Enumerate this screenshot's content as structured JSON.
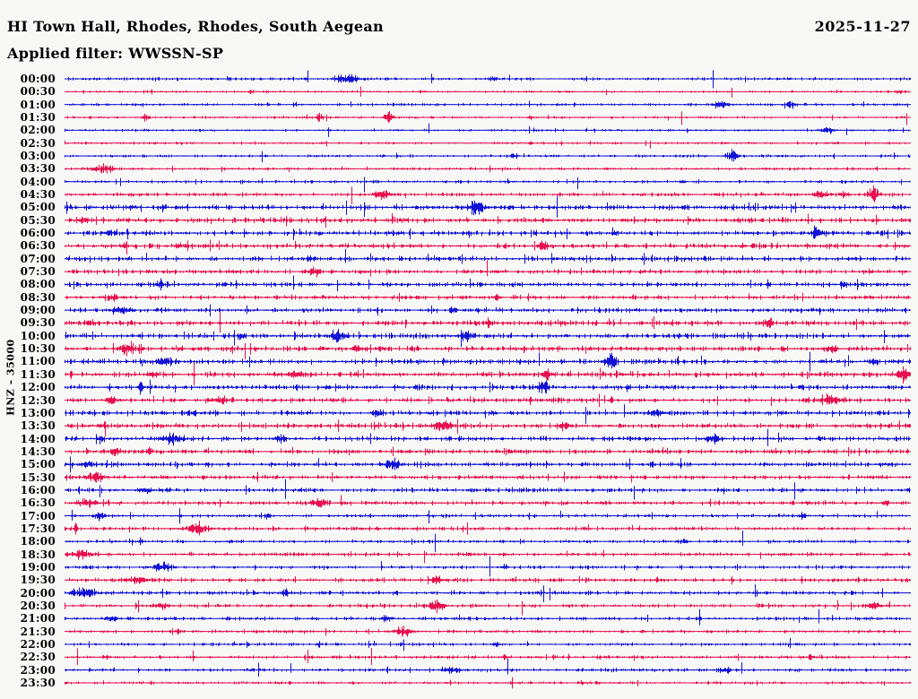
{
  "header": {
    "station_title": "HI Town Hall, Rhodes, Rhodes, South Aegean",
    "date": "2025-11-27",
    "filter_label": "Applied filter: WWSSN-SP"
  },
  "axis": {
    "channel_label": "HNZ – 35000"
  },
  "colors": {
    "blue": "#1212D6",
    "red": "#E8104E",
    "text": "#000000",
    "background": "#F8F8F6"
  },
  "chart_data": {
    "type": "line",
    "subtype": "helicorder",
    "title": "HI Town Hall, Rhodes, Rhodes, South Aegean",
    "date": "2025-11-27",
    "filter": "WWSSN-SP",
    "channel": "HNZ",
    "scale": 35000,
    "row_interval_minutes": 30,
    "num_rows": 48,
    "legend_position": "none",
    "grid": false,
    "bursts_format": "[position_fraction_of_row, gaussian_width_fraction, peak_amplitude_px]",
    "rows": [
      {
        "label": "00:00",
        "color": "blue",
        "noise": 1.1,
        "bursts": [
          [
            0.335,
            0.014,
            4.5
          ],
          [
            0.505,
            0.004,
            2.5
          ]
        ]
      },
      {
        "label": "00:30",
        "color": "red",
        "noise": 0.8,
        "bursts": [
          [
            0.22,
            0.003,
            2.0
          ],
          [
            0.42,
            0.002,
            1.5
          ],
          [
            0.985,
            0.004,
            2.5
          ]
        ]
      },
      {
        "label": "01:00",
        "color": "blue",
        "noise": 1.0,
        "bursts": [
          [
            0.775,
            0.009,
            3.0
          ],
          [
            0.857,
            0.005,
            4.5
          ]
        ]
      },
      {
        "label": "01:30",
        "color": "red",
        "noise": 0.9,
        "bursts": [
          [
            0.095,
            0.004,
            4.0
          ],
          [
            0.3,
            0.004,
            4.0
          ],
          [
            0.383,
            0.005,
            6.5
          ],
          [
            0.55,
            0.003,
            2.0
          ]
        ]
      },
      {
        "label": "02:00",
        "color": "blue",
        "noise": 0.85,
        "bursts": [
          [
            0.9,
            0.007,
            3.5
          ]
        ]
      },
      {
        "label": "02:30",
        "color": "red",
        "noise": 0.85,
        "bursts": [
          [
            0.55,
            0.002,
            1.5
          ]
        ]
      },
      {
        "label": "03:00",
        "color": "blue",
        "noise": 1.0,
        "bursts": [
          [
            0.53,
            0.005,
            2.5
          ],
          [
            0.788,
            0.008,
            4.5
          ]
        ]
      },
      {
        "label": "03:30",
        "color": "red",
        "noise": 1.0,
        "bursts": [
          [
            0.045,
            0.012,
            4.5
          ]
        ]
      },
      {
        "label": "04:00",
        "color": "blue",
        "noise": 1.05,
        "bursts": [
          [
            0.73,
            0.003,
            1.5
          ]
        ]
      },
      {
        "label": "04:30",
        "color": "red",
        "noise": 1.35,
        "bursts": [
          [
            0.375,
            0.009,
            4.5
          ],
          [
            0.893,
            0.006,
            5.0
          ],
          [
            0.92,
            0.004,
            3.0
          ],
          [
            0.955,
            0.006,
            7.0
          ]
        ]
      },
      {
        "label": "05:00",
        "color": "blue",
        "noise": 1.9,
        "bursts": [
          [
            0.08,
            0.005,
            2.5
          ],
          [
            0.487,
            0.009,
            6.5
          ]
        ]
      },
      {
        "label": "05:30",
        "color": "red",
        "noise": 1.8,
        "bursts": [
          [
            0.02,
            0.006,
            3.0
          ]
        ]
      },
      {
        "label": "06:00",
        "color": "blue",
        "noise": 1.8,
        "bursts": [
          [
            0.05,
            0.006,
            2.5
          ],
          [
            0.89,
            0.008,
            4.5
          ]
        ]
      },
      {
        "label": "06:30",
        "color": "red",
        "noise": 1.8,
        "bursts": [
          [
            0.07,
            0.005,
            3.0
          ],
          [
            0.135,
            0.005,
            3.0
          ],
          [
            0.565,
            0.006,
            5.5
          ]
        ]
      },
      {
        "label": "07:00",
        "color": "blue",
        "noise": 1.7,
        "bursts": [
          [
            0.29,
            0.004,
            2.5
          ],
          [
            0.6,
            0.003,
            2.0
          ]
        ]
      },
      {
        "label": "07:30",
        "color": "red",
        "noise": 1.6,
        "bursts": [
          [
            0.295,
            0.007,
            4.0
          ],
          [
            0.51,
            0.003,
            2.5
          ]
        ]
      },
      {
        "label": "08:00",
        "color": "blue",
        "noise": 1.6,
        "bursts": [
          [
            0.115,
            0.009,
            2.5
          ],
          [
            0.92,
            0.004,
            2.0
          ]
        ]
      },
      {
        "label": "08:30",
        "color": "red",
        "noise": 1.5,
        "bursts": [
          [
            0.055,
            0.009,
            3.0
          ],
          [
            0.51,
            0.004,
            3.5
          ]
        ]
      },
      {
        "label": "09:00",
        "color": "blue",
        "noise": 1.8,
        "bursts": [
          [
            0.065,
            0.01,
            3.0
          ],
          [
            0.46,
            0.004,
            2.0
          ]
        ]
      },
      {
        "label": "09:30",
        "color": "red",
        "noise": 1.8,
        "bursts": [
          [
            0.03,
            0.006,
            3.0
          ],
          [
            0.5,
            0.003,
            4.5
          ],
          [
            0.832,
            0.007,
            4.5
          ]
        ]
      },
      {
        "label": "10:00",
        "color": "blue",
        "noise": 1.9,
        "bursts": [
          [
            0.208,
            0.003,
            3.5
          ],
          [
            0.323,
            0.008,
            5.5
          ],
          [
            0.475,
            0.009,
            5.0
          ]
        ]
      },
      {
        "label": "10:30",
        "color": "red",
        "noise": 1.9,
        "bursts": [
          [
            0.075,
            0.009,
            4.5
          ],
          [
            0.345,
            0.005,
            3.5
          ],
          [
            0.905,
            0.007,
            4.5
          ]
        ]
      },
      {
        "label": "11:00",
        "color": "blue",
        "noise": 1.9,
        "bursts": [
          [
            0.12,
            0.009,
            4.5
          ],
          [
            0.645,
            0.007,
            7.0
          ],
          [
            0.955,
            0.005,
            3.5
          ]
        ]
      },
      {
        "label": "11:30",
        "color": "red",
        "noise": 1.9,
        "bursts": [
          [
            0.105,
            0.005,
            3.5
          ],
          [
            0.27,
            0.009,
            3.0
          ],
          [
            0.57,
            0.005,
            5.0
          ],
          [
            0.99,
            0.006,
            7.0
          ]
        ]
      },
      {
        "label": "12:00",
        "color": "blue",
        "noise": 1.8,
        "bursts": [
          [
            0.09,
            0.003,
            6.0
          ],
          [
            0.31,
            0.004,
            2.5
          ],
          [
            0.565,
            0.006,
            6.5
          ]
        ]
      },
      {
        "label": "12:30",
        "color": "red",
        "noise": 1.8,
        "bursts": [
          [
            0.055,
            0.007,
            3.0
          ],
          [
            0.185,
            0.009,
            3.5
          ],
          [
            0.645,
            0.004,
            2.5
          ],
          [
            0.905,
            0.008,
            5.5
          ]
        ]
      },
      {
        "label": "13:00",
        "color": "blue",
        "noise": 1.8,
        "bursts": [
          [
            0.15,
            0.005,
            3.0
          ],
          [
            0.37,
            0.006,
            4.0
          ],
          [
            0.7,
            0.009,
            3.0
          ]
        ]
      },
      {
        "label": "13:30",
        "color": "red",
        "noise": 1.8,
        "bursts": [
          [
            0.045,
            0.005,
            3.0
          ],
          [
            0.447,
            0.009,
            6.5
          ],
          [
            0.59,
            0.006,
            4.0
          ]
        ]
      },
      {
        "label": "14:00",
        "color": "blue",
        "noise": 1.8,
        "bursts": [
          [
            0.042,
            0.003,
            4.5
          ],
          [
            0.127,
            0.013,
            5.5
          ],
          [
            0.255,
            0.007,
            3.0
          ],
          [
            0.765,
            0.007,
            4.0
          ]
        ]
      },
      {
        "label": "14:30",
        "color": "red",
        "noise": 1.6,
        "bursts": [
          [
            0.06,
            0.006,
            3.0
          ],
          [
            0.1,
            0.004,
            3.0
          ]
        ]
      },
      {
        "label": "15:00",
        "color": "blue",
        "noise": 1.7,
        "bursts": [
          [
            0.025,
            0.008,
            3.5
          ],
          [
            0.388,
            0.007,
            7.5
          ]
        ]
      },
      {
        "label": "15:30",
        "color": "red",
        "noise": 1.5,
        "bursts": [
          [
            0.035,
            0.009,
            4.0
          ]
        ]
      },
      {
        "label": "16:00",
        "color": "blue",
        "noise": 1.5,
        "bursts": [
          [
            0.095,
            0.007,
            3.0
          ],
          [
            0.5,
            0.003,
            2.0
          ]
        ]
      },
      {
        "label": "16:30",
        "color": "red",
        "noise": 1.4,
        "bursts": [
          [
            0.025,
            0.013,
            4.0
          ],
          [
            0.3,
            0.011,
            3.0
          ],
          [
            0.97,
            0.004,
            2.5
          ]
        ]
      },
      {
        "label": "17:00",
        "color": "blue",
        "noise": 1.25,
        "bursts": [
          [
            0.04,
            0.007,
            3.0
          ],
          [
            0.24,
            0.003,
            2.5
          ],
          [
            0.87,
            0.004,
            2.0
          ]
        ]
      },
      {
        "label": "17:30",
        "color": "red",
        "noise": 1.3,
        "bursts": [
          [
            0.013,
            0.002,
            5.5
          ],
          [
            0.155,
            0.013,
            4.5
          ]
        ]
      },
      {
        "label": "18:00",
        "color": "blue",
        "noise": 1.15,
        "bursts": [
          [
            0.09,
            0.003,
            2.5
          ],
          [
            0.73,
            0.007,
            2.0
          ]
        ]
      },
      {
        "label": "18:30",
        "color": "red",
        "noise": 1.3,
        "bursts": [
          [
            0.02,
            0.013,
            3.5
          ],
          [
            0.48,
            0.003,
            2.0
          ]
        ]
      },
      {
        "label": "19:00",
        "color": "blue",
        "noise": 1.2,
        "bursts": [
          [
            0.115,
            0.01,
            4.5
          ],
          [
            0.52,
            0.004,
            2.0
          ]
        ]
      },
      {
        "label": "19:30",
        "color": "red",
        "noise": 1.4,
        "bursts": [
          [
            0.085,
            0.013,
            3.5
          ],
          [
            0.44,
            0.007,
            2.5
          ],
          [
            0.7,
            0.003,
            2.0
          ]
        ]
      },
      {
        "label": "20:00",
        "color": "blue",
        "noise": 1.4,
        "bursts": [
          [
            0.022,
            0.013,
            5.5
          ],
          [
            0.26,
            0.004,
            3.0
          ]
        ]
      },
      {
        "label": "20:30",
        "color": "red",
        "noise": 1.3,
        "bursts": [
          [
            0.115,
            0.009,
            3.0
          ],
          [
            0.44,
            0.009,
            5.5
          ],
          [
            0.955,
            0.009,
            3.5
          ]
        ]
      },
      {
        "label": "21:00",
        "color": "blue",
        "noise": 1.3,
        "bursts": [
          [
            0.055,
            0.007,
            2.5
          ],
          [
            0.38,
            0.007,
            2.5
          ],
          [
            0.75,
            0.003,
            2.0
          ]
        ]
      },
      {
        "label": "21:30",
        "color": "red",
        "noise": 1.25,
        "bursts": [
          [
            0.135,
            0.004,
            2.0
          ],
          [
            0.4,
            0.009,
            4.5
          ]
        ]
      },
      {
        "label": "22:00",
        "color": "blue",
        "noise": 1.15,
        "bursts": [
          [
            0.3,
            0.003,
            3.0
          ],
          [
            0.51,
            0.004,
            2.5
          ]
        ]
      },
      {
        "label": "22:30",
        "color": "red",
        "noise": 1.25,
        "bursts": [
          [
            0.05,
            0.004,
            2.0
          ],
          [
            0.52,
            0.004,
            2.5
          ],
          [
            0.88,
            0.004,
            2.0
          ]
        ]
      },
      {
        "label": "23:00",
        "color": "blue",
        "noise": 1.2,
        "bursts": [
          [
            0.455,
            0.011,
            2.5
          ],
          [
            0.78,
            0.007,
            2.5
          ]
        ]
      },
      {
        "label": "23:30",
        "color": "red",
        "noise": 1.0,
        "bursts": [
          [
            0.34,
            0.003,
            1.5
          ],
          [
            0.61,
            0.005,
            2.0
          ]
        ]
      }
    ]
  }
}
